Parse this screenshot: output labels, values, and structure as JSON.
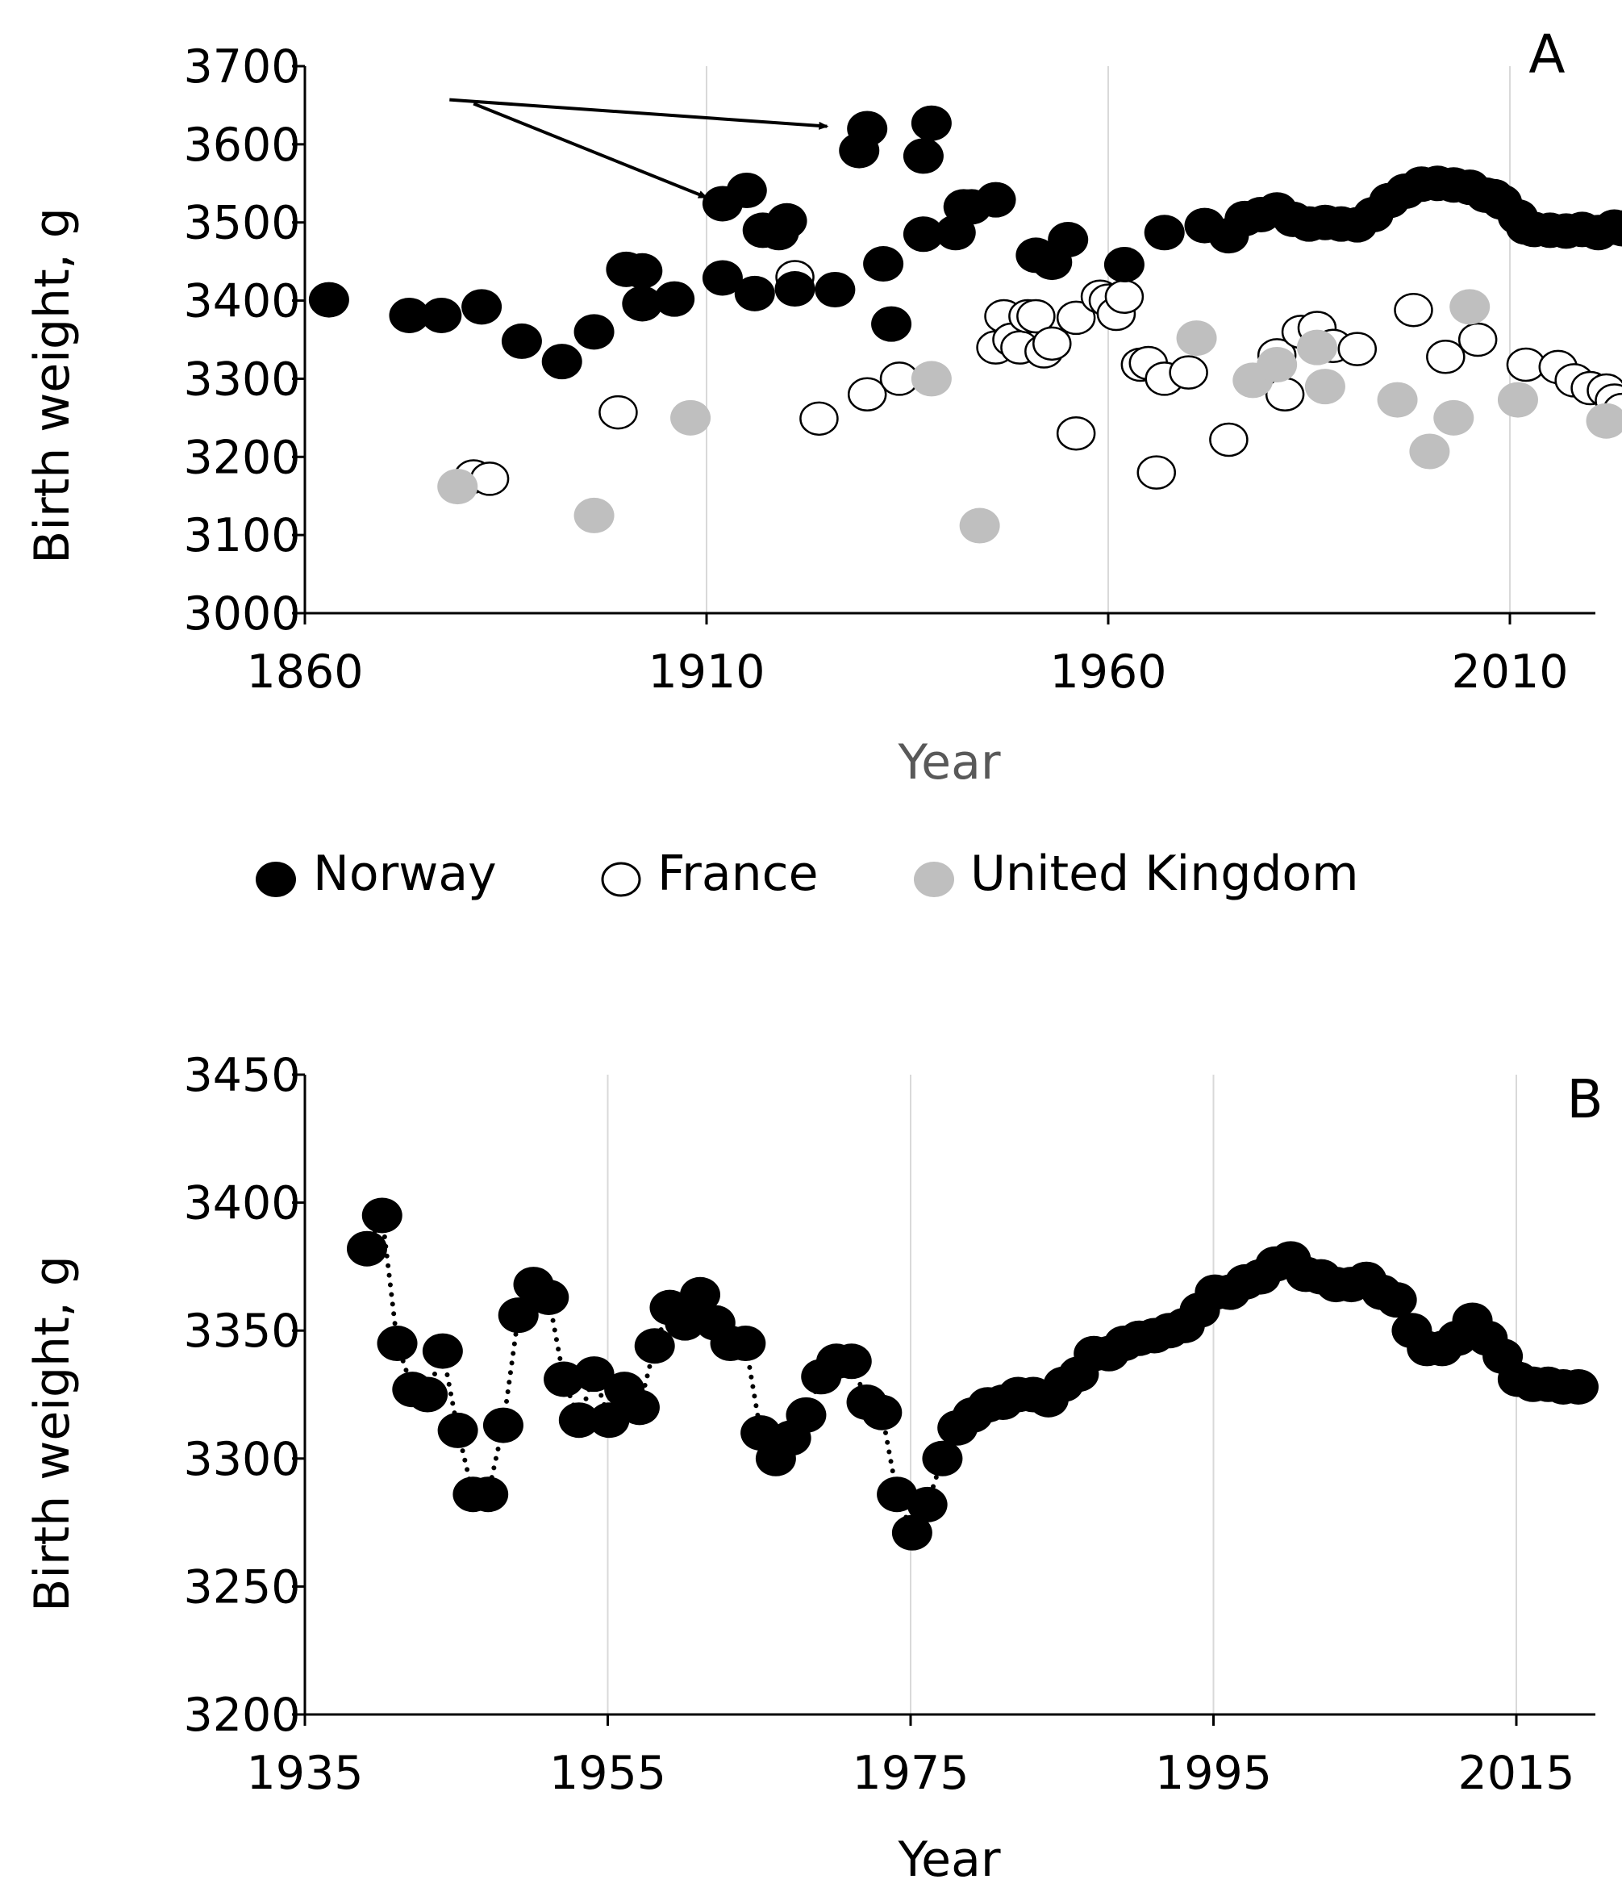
{
  "colors": {
    "norway": "#000000",
    "france_fill": "#ffffff",
    "france_stroke": "#000000",
    "uk": "#bfbfbf",
    "grid": "#d9d9d9",
    "axis": "#000000"
  },
  "legend": {
    "norway": "Norway",
    "france": "France",
    "uk": "United Kingdom"
  },
  "chart_data": [
    {
      "panel": "A",
      "type": "scatter",
      "xlabel": "Year",
      "ylabel": "Birth weight, g",
      "xlim": [
        1860,
        2020
      ],
      "ylim": [
        3000,
        3700
      ],
      "xticks": [
        1860,
        1910,
        1960,
        2010
      ],
      "yticks": [
        3000,
        3100,
        3200,
        3300,
        3400,
        3500,
        3600,
        3700
      ],
      "grid": "vertical",
      "arrows": [
        {
          "from": [
            1878,
            3657
          ],
          "to": [
            1925,
            3623
          ]
        },
        {
          "from": [
            1881,
            3652
          ],
          "to": [
            1910,
            3532
          ]
        }
      ],
      "series": [
        {
          "name": "Norway",
          "style": "filled-black",
          "points": [
            [
              1863,
              3401
            ],
            [
              1873,
              3381
            ],
            [
              1877,
              3381
            ],
            [
              1882,
              3392
            ],
            [
              1887,
              3348
            ],
            [
              1892,
              3322
            ],
            [
              1896,
              3360
            ],
            [
              1900,
              3440
            ],
            [
              1902,
              3438
            ],
            [
              1902,
              3396
            ],
            [
              1906,
              3402
            ],
            [
              1912,
              3429
            ],
            [
              1912,
              3524
            ],
            [
              1915,
              3541
            ],
            [
              1916,
              3409
            ],
            [
              1917,
              3490
            ],
            [
              1919,
              3487
            ],
            [
              1920,
              3502
            ],
            [
              1921,
              3415
            ],
            [
              1926,
              3414
            ],
            [
              1929,
              3592
            ],
            [
              1930,
              3620
            ],
            [
              1932,
              3447
            ],
            [
              1933,
              3370
            ],
            [
              1937,
              3485
            ],
            [
              1937,
              3585
            ],
            [
              1938,
              3627
            ],
            [
              1941,
              3487
            ],
            [
              1942,
              3520
            ],
            [
              1943,
              3520
            ],
            [
              1946,
              3529
            ],
            [
              1951,
              3458
            ],
            [
              1953,
              3449
            ],
            [
              1955,
              3478
            ],
            [
              1962,
              3446
            ],
            [
              1967,
              3487
            ],
            [
              1972,
              3496
            ],
            [
              1975,
              3483
            ],
            [
              1977,
              3505
            ],
            [
              1979,
              3510
            ],
            [
              1981,
              3516
            ],
            [
              1983,
              3504
            ],
            [
              1985,
              3498
            ],
            [
              1987,
              3500
            ],
            [
              1989,
              3498
            ],
            [
              1991,
              3497
            ],
            [
              1993,
              3510
            ],
            [
              1995,
              3528
            ],
            [
              1997,
              3540
            ],
            [
              1999,
              3549
            ],
            [
              2001,
              3550
            ],
            [
              2003,
              3548
            ],
            [
              2005,
              3545
            ],
            [
              2007,
              3535
            ],
            [
              2008,
              3533
            ],
            [
              2009,
              3526
            ],
            [
              2011,
              3507
            ],
            [
              2012,
              3494
            ],
            [
              2013,
              3491
            ],
            [
              2015,
              3490
            ],
            [
              2017,
              3489
            ],
            [
              2019,
              3491
            ],
            [
              2021,
              3487
            ],
            [
              2023,
              3494
            ],
            [
              2024,
              3492
            ],
            [
              2025,
              3495
            ]
          ]
        },
        {
          "name": "France",
          "style": "open-circle",
          "points": [
            [
              1881,
              3175
            ],
            [
              1883,
              3172
            ],
            [
              1899,
              3257
            ],
            [
              1921,
              3430
            ],
            [
              1924,
              3249
            ],
            [
              1930,
              3280
            ],
            [
              1934,
              3300
            ],
            [
              1946,
              3340
            ],
            [
              1947,
              3380
            ],
            [
              1948,
              3350
            ],
            [
              1949,
              3340
            ],
            [
              1950,
              3380
            ],
            [
              1951,
              3380
            ],
            [
              1952,
              3335
            ],
            [
              1953,
              3345
            ],
            [
              1956,
              3378
            ],
            [
              1956,
              3230
            ],
            [
              1959,
              3405
            ],
            [
              1960,
              3400
            ],
            [
              1961,
              3383
            ],
            [
              1962,
              3405
            ],
            [
              1964,
              3318
            ],
            [
              1965,
              3320
            ],
            [
              1966,
              3180
            ],
            [
              1967,
              3300
            ],
            [
              1970,
              3308
            ],
            [
              1975,
              3222
            ],
            [
              1981,
              3330
            ],
            [
              1982,
              3280
            ],
            [
              1984,
              3360
            ],
            [
              1986,
              3365
            ],
            [
              1988,
              3342
            ],
            [
              1991,
              3338
            ],
            [
              1998,
              3388
            ],
            [
              2002,
              3328
            ],
            [
              2006,
              3350
            ],
            [
              2012,
              3318
            ],
            [
              2016,
              3315
            ],
            [
              2018,
              3298
            ],
            [
              2020,
              3288
            ],
            [
              2022,
              3285
            ],
            [
              2023,
              3272
            ],
            [
              2024,
              3260
            ]
          ]
        },
        {
          "name": "United Kingdom",
          "style": "filled-gray",
          "points": [
            [
              1879,
              3162
            ],
            [
              1896,
              3125
            ],
            [
              1908,
              3250
            ],
            [
              1938,
              3300
            ],
            [
              1944,
              3112
            ],
            [
              1971,
              3352
            ],
            [
              1978,
              3298
            ],
            [
              1981,
              3318
            ],
            [
              1986,
              3340
            ],
            [
              1987,
              3290
            ],
            [
              1996,
              3273
            ],
            [
              2000,
              3207
            ],
            [
              2003,
              3250
            ],
            [
              2005,
              3392
            ],
            [
              2011,
              3273
            ],
            [
              2022,
              3246
            ]
          ]
        }
      ]
    },
    {
      "panel": "B",
      "type": "line",
      "line_style": "dotted",
      "xlabel": "Year",
      "ylabel": "Birth weight, g",
      "xlim": [
        1935,
        2020
      ],
      "ylim": [
        3200,
        3450
      ],
      "xticks": [
        1935,
        1955,
        1975,
        1995,
        2015
      ],
      "yticks": [
        3200,
        3250,
        3300,
        3350,
        3400,
        3450
      ],
      "grid": "vertical",
      "series": [
        {
          "name": "Norway",
          "style": "filled-black",
          "points": [
            [
              1939.1,
              3382
            ],
            [
              1940.1,
              3395
            ],
            [
              1941.1,
              3345
            ],
            [
              1942.1,
              3327
            ],
            [
              1943.1,
              3325
            ],
            [
              1944.1,
              3342
            ],
            [
              1945.1,
              3311
            ],
            [
              1946.1,
              3286
            ],
            [
              1947.1,
              3286
            ],
            [
              1948.1,
              3313
            ],
            [
              1949.1,
              3356
            ],
            [
              1950.1,
              3368
            ],
            [
              1951.1,
              3363
            ],
            [
              1952.1,
              3331
            ],
            [
              1953.1,
              3315
            ],
            [
              1954.1,
              3333
            ],
            [
              1955.1,
              3315
            ],
            [
              1956.1,
              3327
            ],
            [
              1957.1,
              3320
            ],
            [
              1958.1,
              3344
            ],
            [
              1959.1,
              3359
            ],
            [
              1960.1,
              3353
            ],
            [
              1961.1,
              3364
            ],
            [
              1962.1,
              3353
            ],
            [
              1963.1,
              3345
            ],
            [
              1964.1,
              3345
            ],
            [
              1965.1,
              3310
            ],
            [
              1966.1,
              3300
            ],
            [
              1967.1,
              3308
            ],
            [
              1968.1,
              3317
            ],
            [
              1969.1,
              3332
            ],
            [
              1970.1,
              3338
            ],
            [
              1971.1,
              3338
            ],
            [
              1972.1,
              3322
            ],
            [
              1973.1,
              3318
            ],
            [
              1974.1,
              3286
            ],
            [
              1975.1,
              3271
            ],
            [
              1976.1,
              3282
            ],
            [
              1977.1,
              3300
            ],
            [
              1978.1,
              3312
            ],
            [
              1979.1,
              3317
            ],
            [
              1980.1,
              3321
            ],
            [
              1981.1,
              3322
            ],
            [
              1982.1,
              3325
            ],
            [
              1983.1,
              3325
            ],
            [
              1984.1,
              3323
            ],
            [
              1985.1,
              3329
            ],
            [
              1986.1,
              3333
            ],
            [
              1987.1,
              3341
            ],
            [
              1988.1,
              3341
            ],
            [
              1989.1,
              3345
            ],
            [
              1990.1,
              3347
            ],
            [
              1991.1,
              3348
            ],
            [
              1992.1,
              3350
            ],
            [
              1993.1,
              3352
            ],
            [
              1994.1,
              3358
            ],
            [
              1995.1,
              3365
            ],
            [
              1996.1,
              3365
            ],
            [
              1997.1,
              3369
            ],
            [
              1998.1,
              3371
            ],
            [
              1999.1,
              3376
            ],
            [
              2000.1,
              3378
            ],
            [
              2001.1,
              3372
            ],
            [
              2002.1,
              3371
            ],
            [
              2003.1,
              3368
            ],
            [
              2004.1,
              3368
            ],
            [
              2005.1,
              3370
            ],
            [
              2006.1,
              3365
            ],
            [
              2007.1,
              3362
            ],
            [
              2008.1,
              3350
            ],
            [
              2009.1,
              3343
            ],
            [
              2010.1,
              3343
            ],
            [
              2011.1,
              3347
            ],
            [
              2012.1,
              3354
            ],
            [
              2013.1,
              3347
            ],
            [
              2014.1,
              3340
            ],
            [
              2015.1,
              3331
            ],
            [
              2016.1,
              3329
            ],
            [
              2017.1,
              3329
            ],
            [
              2018.1,
              3328
            ],
            [
              2019.1,
              3328
            ]
          ]
        }
      ]
    }
  ]
}
